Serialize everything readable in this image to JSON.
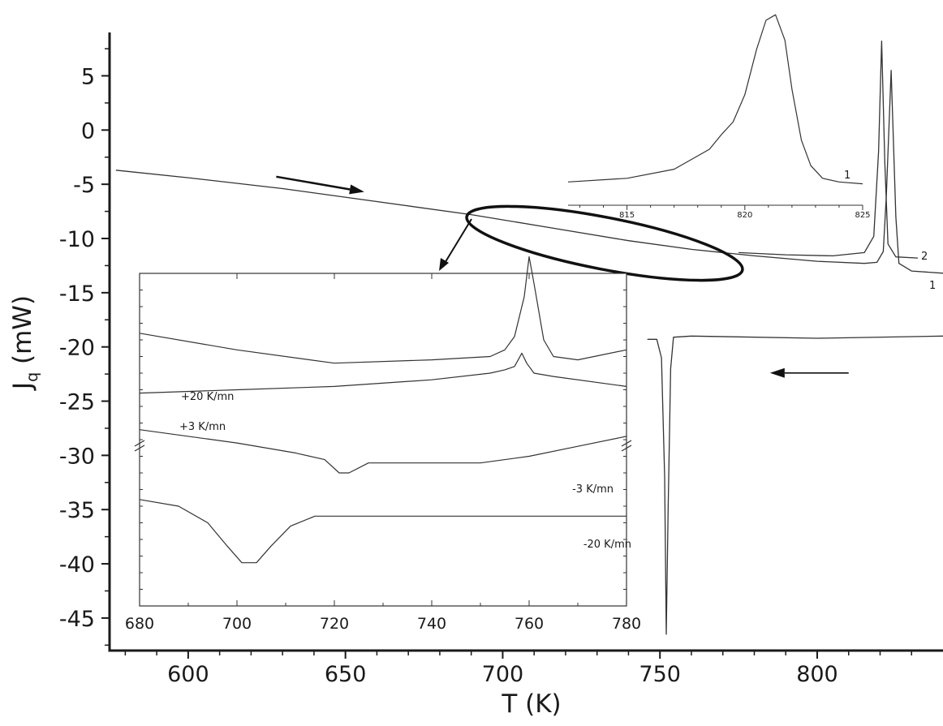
{
  "chart_data": [
    {
      "id": "main",
      "type": "line",
      "xlabel": "T (K)",
      "ylabel": "J",
      "ylabel_sub": "q",
      "ylabel_unit": " (mW)",
      "xlim": [
        575,
        840
      ],
      "ylim": [
        -48,
        9
      ],
      "xticks": [
        600,
        650,
        700,
        750,
        800
      ],
      "yticks": [
        5,
        0,
        -5,
        -10,
        -15,
        -20,
        -25,
        -30,
        -35,
        -40,
        -45
      ],
      "color": "#333333",
      "series": [
        {
          "name": "1",
          "points": [
            [
              577,
              -3.7
            ],
            [
              600,
              -4.4
            ],
            [
              630,
              -5.4
            ],
            [
              660,
              -6.6
            ],
            [
              690,
              -7.8
            ],
            [
              715,
              -9.0
            ],
            [
              740,
              -10.2
            ],
            [
              760,
              -11.0
            ],
            [
              780,
              -11.6
            ],
            [
              800,
              -12.1
            ],
            [
              815,
              -12.3
            ],
            [
              819,
              -12.2
            ],
            [
              821,
              -11.2
            ],
            [
              822,
              -6
            ],
            [
              823.5,
              5.5
            ],
            [
              825,
              -8
            ],
            [
              826,
              -12.3
            ],
            [
              830,
              -13.0
            ],
            [
              840,
              -13.2
            ]
          ]
        },
        {
          "name": "2",
          "points": [
            [
              775,
              -11.3
            ],
            [
              790,
              -11.5
            ],
            [
              805,
              -11.6
            ],
            [
              815,
              -11.3
            ],
            [
              818,
              -9.8
            ],
            [
              819.5,
              -2
            ],
            [
              820.5,
              8.2
            ],
            [
              821.5,
              -3
            ],
            [
              822.5,
              -10.5
            ],
            [
              825,
              -11.7
            ],
            [
              832,
              -11.8
            ]
          ]
        },
        {
          "name": "",
          "points": [
            [
              746,
              -19.3
            ],
            [
              749,
              -19.3
            ],
            [
              750.5,
              -21
            ],
            [
              751.5,
              -32
            ],
            [
              752,
              -46.5
            ],
            [
              752.6,
              -35
            ],
            [
              753.4,
              -22
            ],
            [
              754.3,
              -19.1
            ],
            [
              760,
              -19.0
            ],
            [
              800,
              -19.2
            ],
            [
              840,
              -19.0
            ]
          ]
        }
      ],
      "arrows": [
        {
          "from": [
            628,
            -4.3
          ],
          "to": [
            656,
            -5.7
          ]
        },
        {
          "from": [
            810,
            -22.4
          ],
          "to": [
            785,
            -22.4
          ]
        }
      ]
    },
    {
      "id": "inset-detail",
      "type": "line",
      "xlim": [
        680,
        780
      ],
      "xticks": [
        680,
        700,
        720,
        740,
        760,
        780
      ],
      "color": "#333333",
      "series": [
        {
          "name": "+20 K/mn",
          "points": [
            [
              680,
              0.82
            ],
            [
              700,
              0.77
            ],
            [
              720,
              0.73
            ],
            [
              740,
              0.74
            ],
            [
              752,
              0.75
            ],
            [
              755,
              0.77
            ],
            [
              757,
              0.81
            ],
            [
              759,
              0.93
            ],
            [
              760,
              1.05
            ],
            [
              761,
              0.97
            ],
            [
              763,
              0.8
            ],
            [
              765,
              0.75
            ],
            [
              770,
              0.74
            ],
            [
              780,
              0.77
            ]
          ]
        },
        {
          "name": "+3 K/mn",
          "points": [
            [
              680,
              0.64
            ],
            [
              700,
              0.65
            ],
            [
              720,
              0.66
            ],
            [
              740,
              0.68
            ],
            [
              752,
              0.7
            ],
            [
              755,
              0.71
            ],
            [
              757,
              0.72
            ],
            [
              758.5,
              0.76
            ],
            [
              759.5,
              0.73
            ],
            [
              761,
              0.7
            ],
            [
              765,
              0.69
            ],
            [
              780,
              0.66
            ]
          ]
        },
        {
          "name": "-3 K/mn",
          "points": [
            [
              680,
              0.53
            ],
            [
              700,
              0.49
            ],
            [
              712,
              0.46
            ],
            [
              718,
              0.44
            ],
            [
              721,
              0.4
            ],
            [
              723,
              0.4
            ],
            [
              727,
              0.43
            ],
            [
              735,
              0.43
            ],
            [
              750,
              0.43
            ],
            [
              760,
              0.45
            ],
            [
              770,
              0.48
            ],
            [
              780,
              0.51
            ]
          ]
        },
        {
          "name": "-20 K/mn",
          "points": [
            [
              680,
              0.32
            ],
            [
              688,
              0.3
            ],
            [
              694,
              0.25
            ],
            [
              698,
              0.18
            ],
            [
              701,
              0.13
            ],
            [
              704,
              0.13
            ],
            [
              707,
              0.18
            ],
            [
              711,
              0.24
            ],
            [
              716,
              0.27
            ],
            [
              730,
              0.27
            ],
            [
              750,
              0.27
            ],
            [
              760,
              0.27
            ],
            [
              780,
              0.27
            ]
          ]
        }
      ]
    },
    {
      "id": "inset-peak",
      "type": "line",
      "xlim": [
        812.5,
        825
      ],
      "xticks": [
        815,
        820,
        825
      ],
      "color": "#333333",
      "series": [
        {
          "name": "1",
          "points": [
            [
              812.5,
              0.07
            ],
            [
              815,
              0.09
            ],
            [
              817,
              0.14
            ],
            [
              818.5,
              0.25
            ],
            [
              819,
              0.33
            ],
            [
              819.5,
              0.4
            ],
            [
              820,
              0.55
            ],
            [
              820.5,
              0.8
            ],
            [
              820.9,
              0.96
            ],
            [
              821.3,
              0.99
            ],
            [
              821.7,
              0.85
            ],
            [
              822,
              0.58
            ],
            [
              822.4,
              0.3
            ],
            [
              822.8,
              0.16
            ],
            [
              823.3,
              0.09
            ],
            [
              824,
              0.07
            ],
            [
              825,
              0.06
            ]
          ]
        }
      ]
    }
  ]
}
